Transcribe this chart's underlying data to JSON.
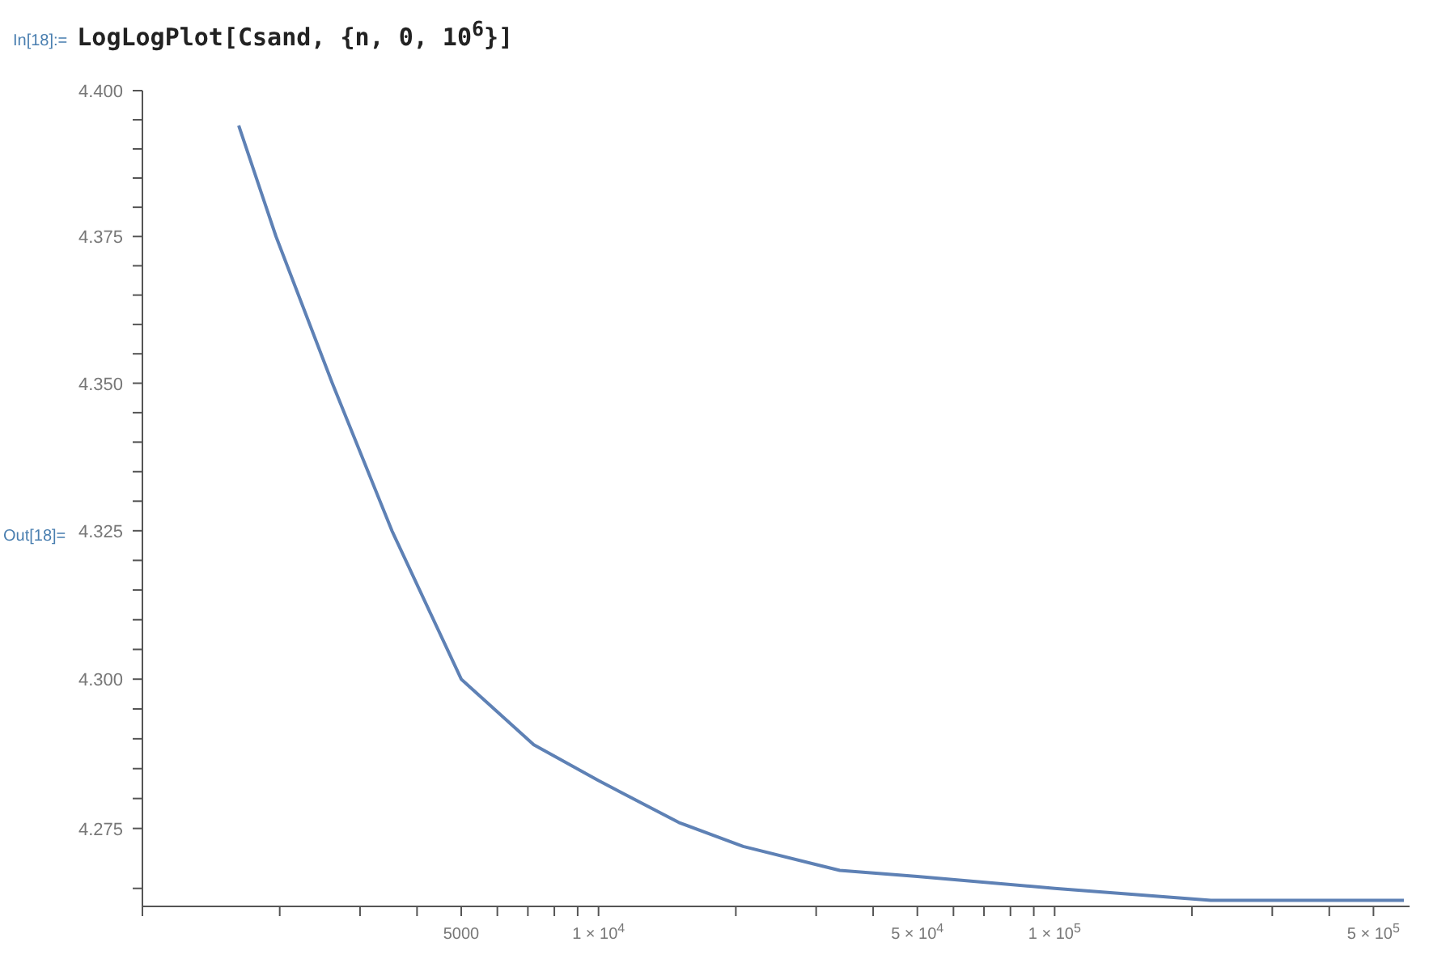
{
  "chart_data": {
    "type": "line",
    "title": "LogLogPlot[Csand, {n, 0, 10$^{6}$}]",
    "annotations": [
      "In[18]:=",
      "Out[18]="
    ],
    "x": [
      1626,
      1963,
      2608,
      3524,
      5000,
      7211,
      10000,
      15000,
      20750,
      33800,
      50000,
      100000,
      220000,
      500000,
      583000
    ],
    "series": [
      {
        "color": "#5e81b5",
        "values": [
          4.394,
          4.375,
          4.35,
          4.325,
          4.3,
          4.289,
          4.283,
          4.276,
          4.272,
          4.268,
          4.267,
          4.265,
          4.263,
          4.263,
          4.263
        ]
      }
    ],
    "log": "xy",
    "grid": false,
    "legend": false,
    "marker": "none",
    "line_style": "solid",
    "xlim": [
      1000,
      600000
    ],
    "xticks": [
      {
        "value": 1000,
        "label": null
      },
      {
        "value": 2000,
        "label": null
      },
      {
        "value": 3000,
        "label": null
      },
      {
        "value": 4000,
        "label": null
      },
      5000,
      {
        "value": 6000,
        "label": null
      },
      {
        "value": 7000,
        "label": null
      },
      {
        "value": 8000,
        "label": null
      },
      {
        "value": 9000,
        "label": null
      },
      {
        "value": 10000,
        "label": "1 × 10$^{4}$"
      },
      {
        "value": 20000,
        "label": null
      },
      {
        "value": 30000,
        "label": null
      },
      {
        "value": 40000,
        "label": null
      },
      {
        "value": 50000,
        "label": "5 × 10$^{4}$"
      },
      {
        "value": 60000,
        "label": null
      },
      {
        "value": 70000,
        "label": null
      },
      {
        "value": 80000,
        "label": null
      },
      {
        "value": 90000,
        "label": null
      },
      {
        "value": 100000,
        "label": "1 × 10$^{5}$"
      },
      {
        "value": 200000,
        "label": null
      },
      {
        "value": 300000,
        "label": null
      },
      {
        "value": 400000,
        "label": null
      },
      {
        "value": 500000,
        "label": "5 × 10$^{5}$"
      }
    ],
    "ylim": [
      4.262,
      4.4
    ],
    "yticks": [
      {
        "value": 4.265,
        "label": null
      },
      {
        "value": 4.275,
        "label": "4.275"
      },
      {
        "value": 4.28,
        "label": null
      },
      {
        "value": 4.285,
        "label": null
      },
      {
        "value": 4.29,
        "label": null
      },
      {
        "value": 4.295,
        "label": null
      },
      {
        "value": 4.3,
        "label": "4.300"
      },
      {
        "value": 4.305,
        "label": null
      },
      {
        "value": 4.31,
        "label": null
      },
      {
        "value": 4.315,
        "label": null
      },
      {
        "value": 4.32,
        "label": null
      },
      {
        "value": 4.325,
        "label": "4.325"
      },
      {
        "value": 4.33,
        "label": null
      },
      {
        "value": 4.335,
        "label": null
      },
      {
        "value": 4.34,
        "label": null
      },
      {
        "value": 4.345,
        "label": null
      },
      {
        "value": 4.35,
        "label": "4.350"
      },
      {
        "value": 4.355,
        "label": null
      },
      {
        "value": 4.36,
        "label": null
      },
      {
        "value": 4.365,
        "label": null
      },
      {
        "value": 4.37,
        "label": null
      },
      {
        "value": 4.375,
        "label": "4.375"
      },
      {
        "value": 4.38,
        "label": null
      },
      {
        "value": 4.385,
        "label": null
      },
      {
        "value": 4.39,
        "label": null
      },
      {
        "value": 4.395,
        "label": null
      },
      {
        "value": 4.4,
        "label": "4.400"
      }
    ]
  }
}
